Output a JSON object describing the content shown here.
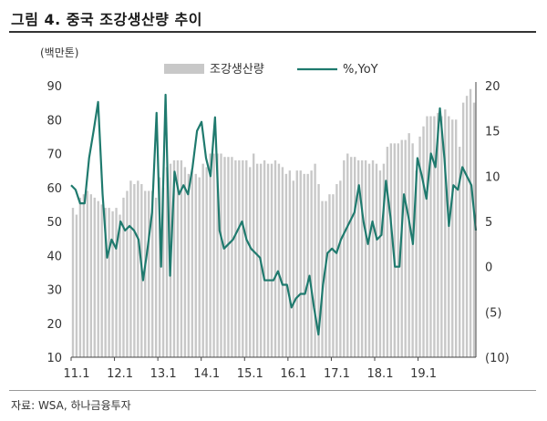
{
  "figure": {
    "title": "그림 4. 중국 조강생산량 추이",
    "source": "자료: WSA, 하나금융투자"
  },
  "chart_data": {
    "type": "bar+line",
    "left_axis": {
      "unit_label": "(백만톤)",
      "range": [
        10,
        90
      ],
      "ticks": [
        "90",
        "80",
        "70",
        "60",
        "50",
        "40",
        "30",
        "20",
        "10"
      ]
    },
    "right_axis": {
      "range": [
        -10,
        20
      ],
      "ticks": [
        "20",
        "15",
        "10",
        "5",
        "0",
        "(5)",
        "(10)"
      ]
    },
    "x_ticks": [
      "11.1",
      "12.1",
      "13.1",
      "14.1",
      "15.1",
      "16.1",
      "17.1",
      "18.1",
      "19.1"
    ],
    "legend": {
      "bar_label": "조강생산량",
      "line_label": "%,YoY"
    },
    "colors": {
      "bar": "#c8c8c8",
      "line": "#1f7a6e"
    },
    "grid": false,
    "series": [
      {
        "name": "조강생산량",
        "type": "bar",
        "axis": "left",
        "values": [
          54,
          52,
          57,
          58,
          59,
          58,
          57,
          56,
          55,
          54,
          54,
          53,
          54,
          52,
          57,
          59,
          62,
          61,
          62,
          61,
          59,
          59,
          59,
          57,
          63,
          60,
          66,
          67,
          68,
          68,
          68,
          66,
          64,
          65,
          64,
          63,
          67,
          66,
          70,
          70,
          70,
          70,
          69,
          69,
          69,
          68,
          68,
          68,
          68,
          66,
          70,
          67,
          67,
          68,
          67,
          67,
          68,
          67,
          66,
          64,
          65,
          62,
          65,
          65,
          64,
          64,
          65,
          67,
          61,
          56,
          56,
          58,
          58,
          61,
          62,
          68,
          70,
          69,
          69,
          68,
          68,
          68,
          67,
          68,
          67,
          65,
          67,
          72,
          73,
          73,
          73,
          74,
          74,
          76,
          73,
          65,
          75,
          78,
          81,
          81,
          81,
          82,
          81,
          83,
          81,
          80,
          80,
          72,
          85,
          87,
          89,
          85
        ]
      },
      {
        "name": "%,YoY",
        "type": "line",
        "axis": "right",
        "values": [
          9,
          8.5,
          7,
          7,
          12,
          15,
          18.2,
          8,
          1,
          3,
          2,
          5,
          4,
          4.5,
          4,
          3,
          -1.5,
          2,
          6,
          17,
          0,
          19,
          -1,
          10.5,
          8,
          9,
          8,
          11,
          15,
          16,
          12,
          10,
          16.5,
          4,
          2,
          2.5,
          3,
          4,
          5,
          3,
          2,
          1.5,
          1,
          -1.5,
          -1.5,
          -1.5,
          -0.5,
          -2,
          -2,
          -4.5,
          -3.5,
          -3,
          -3,
          -1,
          -4.5,
          -7.5,
          -2,
          1.5,
          2,
          1.5,
          3,
          4,
          5,
          6,
          9,
          5,
          2.5,
          5,
          3,
          3.5,
          9.5,
          5.5,
          0,
          0,
          8,
          5.5,
          2.5,
          12,
          10,
          7.5,
          12.5,
          11,
          17.5,
          12,
          4.5,
          9,
          8.5,
          11,
          10,
          9,
          4
        ]
      }
    ]
  }
}
